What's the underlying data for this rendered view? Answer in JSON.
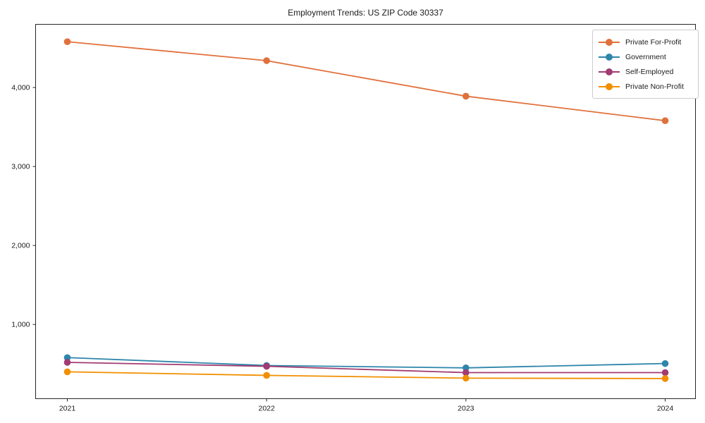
{
  "chart_data": {
    "type": "line",
    "title": "Employment Trends: US ZIP Code 30337",
    "xlabel": "",
    "ylabel": "",
    "categories": [
      "2021",
      "2022",
      "2023",
      "2024"
    ],
    "series": [
      {
        "name": "Private For-Profit",
        "color": "#E1703C",
        "values": [
          4580,
          4340,
          3890,
          3580
        ]
      },
      {
        "name": "Government",
        "color": "#2E86AB",
        "values": [
          580,
          480,
          450,
          505
        ]
      },
      {
        "name": "Self-Employed",
        "color": "#A23B72",
        "values": [
          520,
          470,
          390,
          390
        ]
      },
      {
        "name": "Private Non-Profit",
        "color": "#F18F01",
        "values": [
          400,
          355,
          320,
          315
        ]
      }
    ],
    "yticks": [
      1000,
      2000,
      3000,
      4000
    ],
    "ytick_labels": [
      "1,000",
      "2,000",
      "3,000",
      "4,000"
    ],
    "ylim": [
      60,
      4800
    ],
    "grid": false,
    "legend_position": "upper right",
    "marker": "circle",
    "axis_color": "#262626"
  }
}
